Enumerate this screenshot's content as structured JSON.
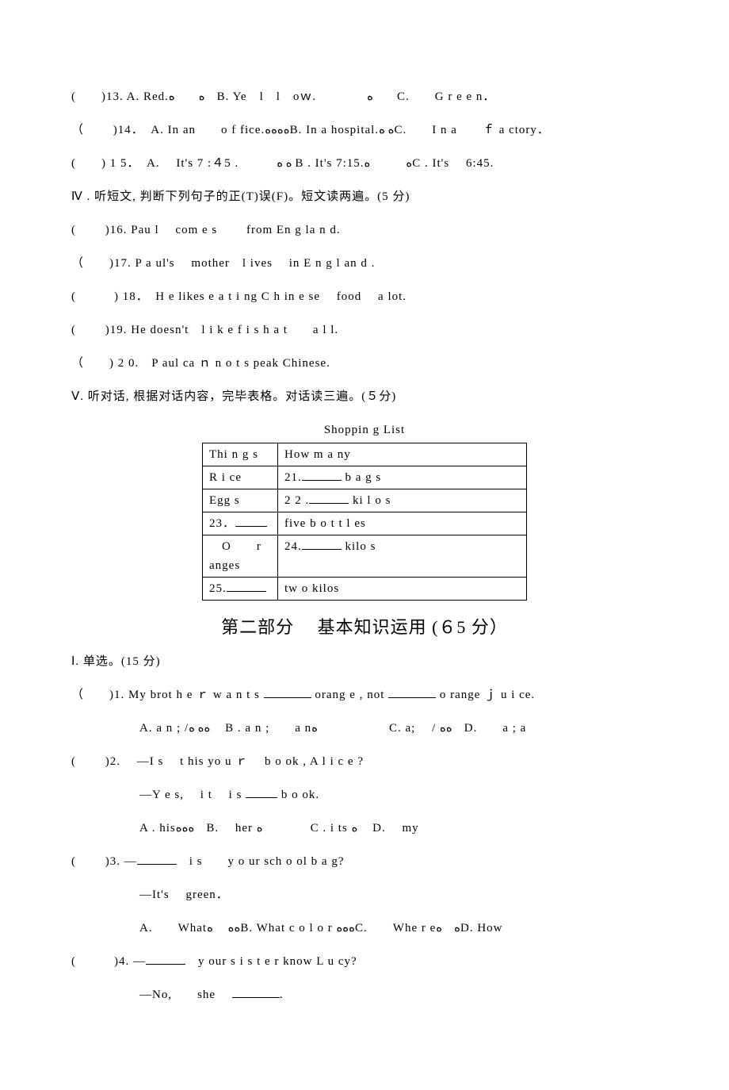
{
  "q13": "(　　)13. A. Red.ﻩ　　ﻩ　B. Ye　l　l　oｗ.　　　　ﻩ　　C.　　G r e e n．",
  "q14": "（　　 )14．　A. In an　　o f fice.ﻩﻩﻩﻩB. In a hospital.ﻩ ﻩC.　　I  n  a　　ｆ a ctory．",
  "q15": "(　　) 1 5．　A. 　It's  7 :４5 .　　　ﻩ ﻩ B . It's 7:15.ﻩ　　　ﻩC . It's　 6:45.",
  "sectionIV": "Ⅳ . 听短文, 判断下列句子的正(T)误(F)。短文读两遍。(5 分)",
  "q16": "(　　 )16. Pau l　 com  e  s　　 from En g la n d.",
  "q17": "（　　)17. P a ul's　 mother　l ives　 in E n g  l an d .",
  "q18": "(　　　) 18．　H e   likes e a  t  i ng  C  h in e se　 food　 a lot.",
  "q19": "(　　 )19. He doesn't　l  i k e  f i s h a  t　　a l l.",
  "q20": "（　　) 2 0.　P aul ca ｎ  n o t  s peak Chinese.",
  "sectionV": "Ⅴ. 听对话, 根据对话内容，完毕表格。对话读三遍。(５分)",
  "tableTitle": "Shoppin g   List",
  "table": {
    "h1": "Thi n g s",
    "h2": "How m a ny",
    "r1c1": "R i ce",
    "r1c2_pre": "21.",
    "r1c2_post": " b a g s",
    "r2c1": "Egg s",
    "r2c2_pre": "2 2 .",
    "r2c2_post": " ki l  o s",
    "r3c1_pre": "23．",
    "r3c2": "five b o t  t  l es",
    "r4c1": "　O　　r　anges",
    "r4c2_pre": "24.",
    "r4c2_post": " kilo s",
    "r5c1_pre": "25.",
    "r5c2": "tw o   kilos"
  },
  "partHeading": "第二部分　 基本知识运用  (６5 分）",
  "sectionI": "Ⅰ. 单选。(15 分)",
  "mc1_q_pre": "（　　)1.  My brot h e ｒ w  a  n  t  s  ",
  "mc1_q_mid": "  orang e ,   not  ",
  "mc1_q_post": "   o range  ｊ u  i ce.",
  "mc1_o": "A. a n ;  /ﻩﻩ ﻩ　 B . a n ;　　a nﻩ　　　　　　C. a;　 / ﻩﻩ　D.　　a ; a",
  "mc2_q": "(　　 )2.　 ―I s　 t his yo u ｒ　 b  o ok ,   A l i c e ?",
  "mc2_a_pre": "―Y e s,　 i  t　 i  s ",
  "mc2_a_post": " b o ok.",
  "mc2_o": "A . hisﻩﻩﻩ　B.　 her ﻩ　　　　C .  i ts ﻩ　 D.　 my",
  "mc3_q_pre": "(　　 )3. ―",
  "mc3_q_post": "　i s　　y  o ur sch o ol b  a  g?",
  "mc3_a": "―It's　 green．",
  "mc3_o": "A.　　Whatﻩﻩ　 ﻩB. What  c  o l o  r ﻩﻩﻩC.　　Whe  r eﻩ　ﻩD. How",
  "mc4_q_pre": "(　　　)4. ―",
  "mc4_q_post": "　y our s i s t  e r know  L u cy?",
  "mc4_a_pre": "―No,　　she　 ",
  "mc4_a_post": "."
}
